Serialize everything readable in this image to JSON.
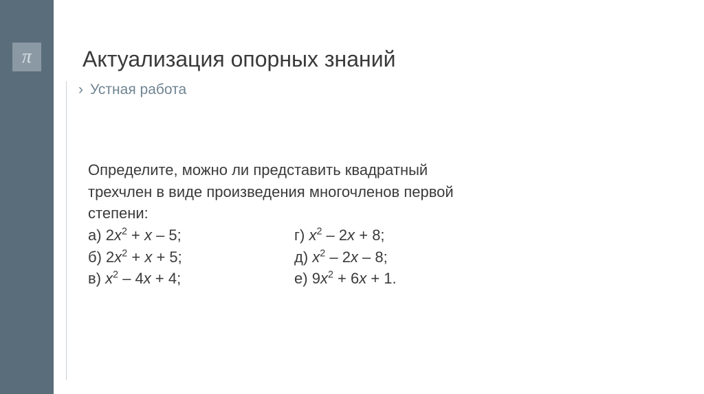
{
  "sidebar": {
    "pi_symbol": "π",
    "bg_color": "#5a6d7a",
    "box_color": "#8a99a3"
  },
  "title": "Актуализация опорных знаний",
  "subtitle": "Устная работа",
  "chevron": "›",
  "intro_line1": "Определите, можно ли представить квадратный",
  "intro_line2": "трехчлен в виде произведения многочленов первой",
  "intro_line3": "степени:",
  "problems": {
    "a": {
      "label": "а) ",
      "expr_pre": "2",
      "var": "х",
      "rest1": " + ",
      "rest2": " – 5;"
    },
    "b": {
      "label": "б) ",
      "expr_pre": "2",
      "var": "х",
      "rest1": " + ",
      "rest2": " + 5;"
    },
    "v": {
      "label": "в) ",
      "expr_pre": "",
      "var": "х",
      "rest1": " – 4",
      "rest2": " + 4;"
    },
    "g": {
      "label": "г) ",
      "expr_pre": "",
      "var": "х",
      "rest1": " – 2",
      "rest2": " + 8;"
    },
    "d": {
      "label": "д) ",
      "expr_pre": "",
      "var": "х",
      "rest1": " – 2",
      "rest2": " – 8;"
    },
    "e": {
      "label": "е) ",
      "expr_pre": "9",
      "var": "х",
      "rest1": " + 6",
      "rest2": " + 1."
    }
  },
  "styling": {
    "title_fontsize": 32,
    "subtitle_fontsize": 21,
    "body_fontsize": 22,
    "title_color": "#3a3a3a",
    "subtitle_color": "#6f8491",
    "divider_color": "#c9d1d7"
  }
}
